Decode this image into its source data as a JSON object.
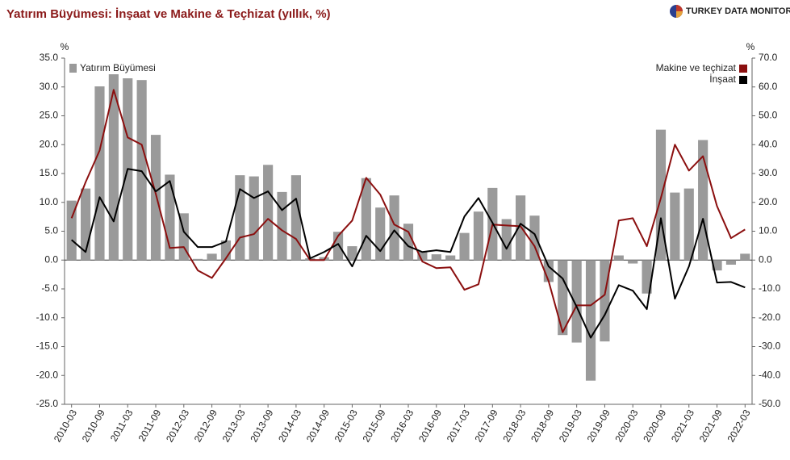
{
  "chart_data": {
    "type": "combo",
    "title": "Yatırım Büyümesi: İnşaat ve Makine & Teçhizat (yıllık, %)",
    "brand": "TURKEY DATA MONITOR",
    "ylabel": "%",
    "y2label": "%",
    "categories": [
      "2010-03",
      null,
      "2010-09",
      null,
      "2011-03",
      null,
      "2011-09",
      null,
      "2012-03",
      null,
      "2012-09",
      null,
      "2013-03",
      null,
      "2013-09",
      null,
      "2014-03",
      null,
      "2014-09",
      null,
      "2015-03",
      null,
      "2015-09",
      null,
      "2016-03",
      null,
      "2016-09",
      null,
      "2017-03",
      null,
      "2017-09",
      null,
      "2018-03",
      null,
      "2018-09",
      null,
      "2019-03",
      null,
      "2019-09",
      null,
      "2020-03",
      null,
      "2020-09",
      null,
      "2021-03",
      null,
      "2021-09",
      null,
      "2022-03"
    ],
    "series": [
      {
        "name": "Yatırım Büyümesi",
        "type": "bar",
        "color": "#9a9a9a",
        "legend": "top-left",
        "values": [
          10.3,
          12.4,
          30.1,
          32.2,
          31.5,
          31.2,
          21.7,
          14.8,
          8.1,
          0.2,
          1.1,
          3.4,
          14.7,
          14.5,
          16.5,
          11.8,
          14.7,
          0.3,
          0.5,
          4.9,
          2.4,
          14.2,
          9.1,
          11.2,
          6.3,
          1.5,
          1.0,
          0.8,
          4.7,
          8.4,
          12.5,
          7.1,
          11.2,
          7.7,
          -3.8,
          -13.0,
          -14.3,
          -20.9,
          -14.1,
          0.8,
          -0.6,
          -5.8,
          22.6,
          11.7,
          12.4,
          20.8,
          -1.8,
          -0.8,
          1.1
        ]
      },
      {
        "name": "Makine ve teçhizat",
        "type": "line",
        "color": "#8b0f0f",
        "axis": "y2",
        "legend": "top-right",
        "values": [
          14.5,
          27,
          38,
          59,
          42.5,
          40,
          23,
          4.2,
          4.5,
          -3.6,
          -6.2,
          0.6,
          7.8,
          9,
          14.3,
          10.3,
          7.3,
          0,
          0,
          8.4,
          13.7,
          28.5,
          22.7,
          12.3,
          9.8,
          -0.5,
          -2.8,
          -2.5,
          -10.3,
          -8.4,
          12.3,
          12,
          11.7,
          4.8,
          -7.3,
          -25,
          -15.7,
          -15.7,
          -12,
          13.7,
          14.5,
          4.8,
          21.5,
          40,
          31,
          36,
          18.7,
          7.6,
          10.6
        ]
      },
      {
        "name": "İnşaat",
        "type": "line",
        "color": "#000000",
        "axis": "y2",
        "legend": "top-right",
        "values": [
          7,
          2.8,
          21.8,
          13.4,
          31.6,
          30.8,
          23.8,
          27.4,
          9.8,
          4.5,
          4.5,
          6.4,
          24.6,
          21.5,
          23.8,
          17.3,
          21.3,
          0.6,
          2.8,
          5.6,
          -2.2,
          8.4,
          3.1,
          10.3,
          4.8,
          2.8,
          3.4,
          2.8,
          15.1,
          21.5,
          12.9,
          3.9,
          12.6,
          9,
          -2.2,
          -6.4,
          -16.2,
          -26.9,
          -19,
          -8.7,
          -10.6,
          -17,
          14.5,
          -13.4,
          -2.2,
          14.3,
          -7.8,
          -7.6,
          -9.5
        ]
      }
    ],
    "ylim": [
      -25,
      35
    ],
    "yticks": [
      {
        "value": 35,
        "label": "35.0"
      },
      {
        "value": 30,
        "label": "30.0"
      },
      {
        "value": 25,
        "label": "25.0"
      },
      {
        "value": 20,
        "label": "20.0"
      },
      {
        "value": 15,
        "label": "15.0"
      },
      {
        "value": 10,
        "label": "10.0"
      },
      {
        "value": 5,
        "label": "5.0"
      },
      {
        "value": 0,
        "label": "0.0"
      },
      {
        "value": -5,
        "label": "-5.0"
      },
      {
        "value": -10,
        "label": "-10.0"
      },
      {
        "value": -15,
        "label": "-15.0"
      },
      {
        "value": -20,
        "label": "-20.0"
      },
      {
        "value": -25,
        "label": "-25.0"
      }
    ],
    "y2lim": [
      -50,
      70
    ],
    "y2ticks": [
      {
        "value": 70,
        "label": "70.0"
      },
      {
        "value": 60,
        "label": "60.0"
      },
      {
        "value": 50,
        "label": "50.0"
      },
      {
        "value": 40,
        "label": "40.0"
      },
      {
        "value": 30,
        "label": "30.0"
      },
      {
        "value": 20,
        "label": "20.0"
      },
      {
        "value": 10,
        "label": "10.0"
      },
      {
        "value": 0,
        "label": "0.0"
      },
      {
        "value": -10,
        "label": "-10.0"
      },
      {
        "value": -20,
        "label": "-20.0"
      },
      {
        "value": -30,
        "label": "-30.0"
      },
      {
        "value": -40,
        "label": "-40.0"
      },
      {
        "value": -50,
        "label": "-50.0"
      }
    ],
    "grid": false
  }
}
